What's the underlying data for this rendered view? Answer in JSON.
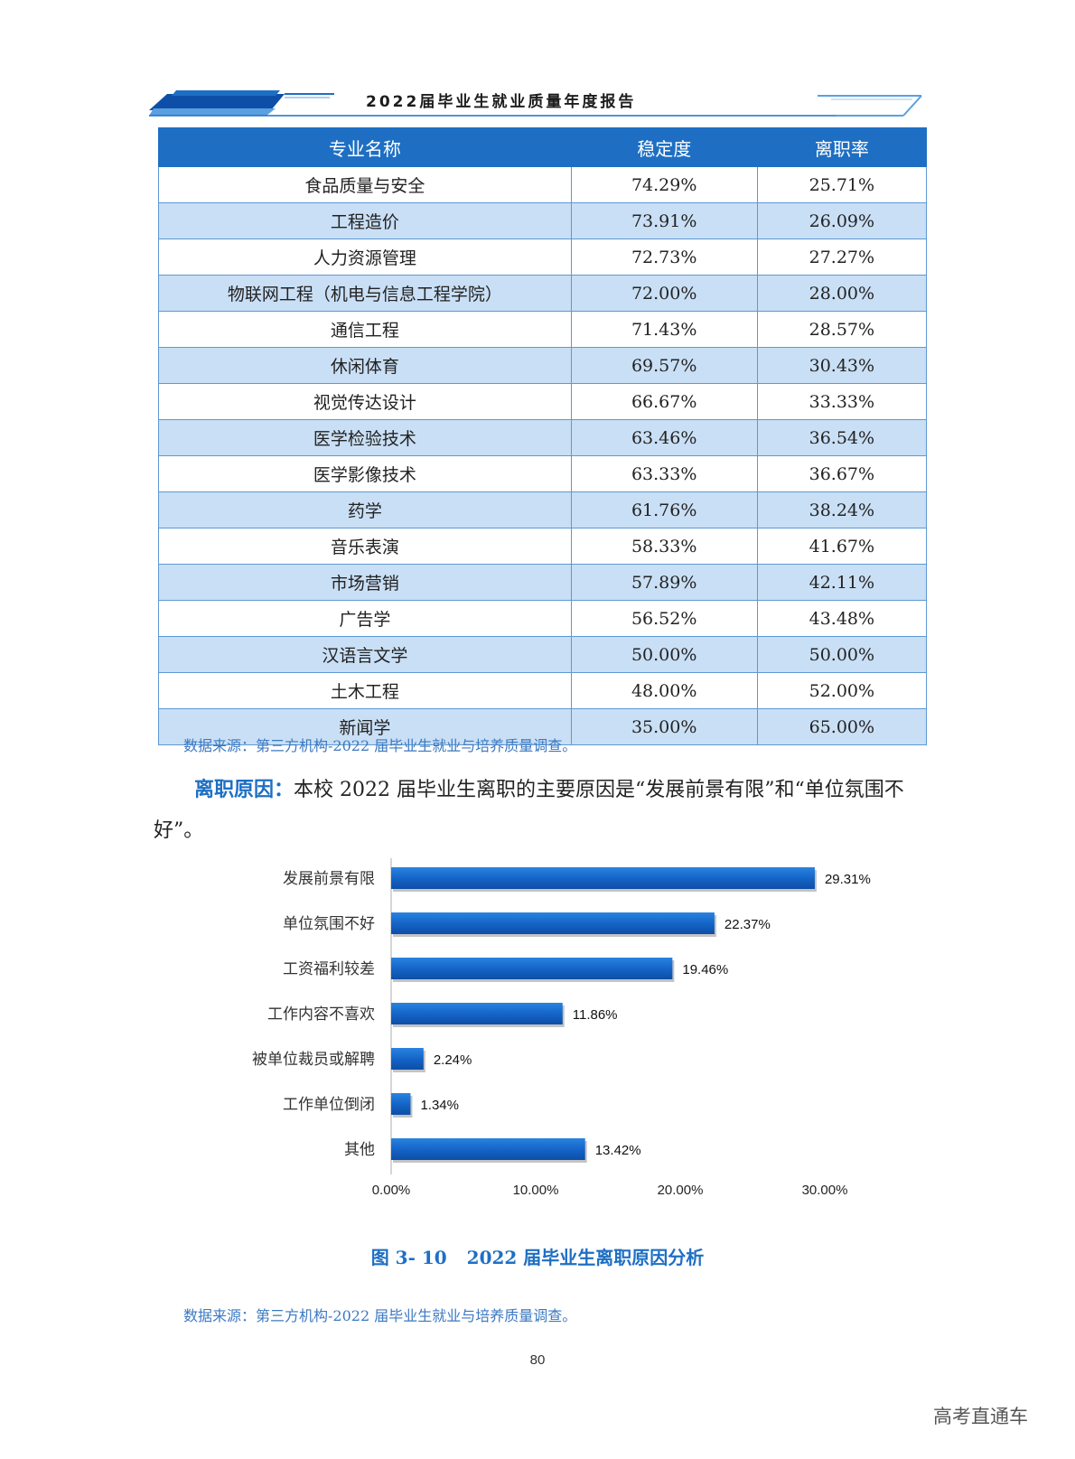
{
  "header": {
    "title": "2022届毕业生就业质量年度报告"
  },
  "table": {
    "headers": [
      "专业名称",
      "稳定度",
      "离职率"
    ],
    "rows": [
      [
        "食品质量与安全",
        "74.29%",
        "25.71%"
      ],
      [
        "工程造价",
        "73.91%",
        "26.09%"
      ],
      [
        "人力资源管理",
        "72.73%",
        "27.27%"
      ],
      [
        "物联网工程（机电与信息工程学院）",
        "72.00%",
        "28.00%"
      ],
      [
        "通信工程",
        "71.43%",
        "28.57%"
      ],
      [
        "休闲体育",
        "69.57%",
        "30.43%"
      ],
      [
        "视觉传达设计",
        "66.67%",
        "33.33%"
      ],
      [
        "医学检验技术",
        "63.46%",
        "36.54%"
      ],
      [
        "医学影像技术",
        "63.33%",
        "36.67%"
      ],
      [
        "药学",
        "61.76%",
        "38.24%"
      ],
      [
        "音乐表演",
        "58.33%",
        "41.67%"
      ],
      [
        "市场营销",
        "57.89%",
        "42.11%"
      ],
      [
        "广告学",
        "56.52%",
        "43.48%"
      ],
      [
        "汉语言文学",
        "50.00%",
        "50.00%"
      ],
      [
        "土木工程",
        "48.00%",
        "52.00%"
      ],
      [
        "新闻学",
        "35.00%",
        "65.00%"
      ]
    ],
    "source": "数据来源：第三方机构-2022 届毕业生就业与培养质量调查。"
  },
  "paragraph": {
    "lead": "离职原因：",
    "text": "本校 2022 届毕业生离职的主要原因是“发展前景有限”和“单位氛围不好”。"
  },
  "chart_data": {
    "type": "bar",
    "orientation": "horizontal",
    "categories": [
      "发展前景有限",
      "单位氛围不好",
      "工资福利较差",
      "工作内容不喜欢",
      "被单位裁员或解聘",
      "工作单位倒闭",
      "其他"
    ],
    "values": [
      29.31,
      22.37,
      19.46,
      11.86,
      2.24,
      1.34,
      13.42
    ],
    "value_labels": [
      "29.31%",
      "22.37%",
      "19.46%",
      "11.86%",
      "2.24%",
      "1.34%",
      "13.42%"
    ],
    "xlim": [
      0,
      30
    ],
    "xticks": [
      0,
      10,
      20,
      30
    ],
    "xtick_labels": [
      "0.00%",
      "10.00%",
      "20.00%",
      "30.00%"
    ],
    "color": "#1565c8",
    "grid": false
  },
  "figure": {
    "number": "图 3- 10",
    "title": "2022 届毕业生离职原因分析",
    "source": "数据来源：第三方机构-2022 届毕业生就业与培养质量调查。"
  },
  "page_number": "80",
  "watermark": "高考直通车",
  "colors": {
    "accent": "#1e6fc4",
    "row_alt": "#c9dff5",
    "bar": "#1565c8"
  }
}
